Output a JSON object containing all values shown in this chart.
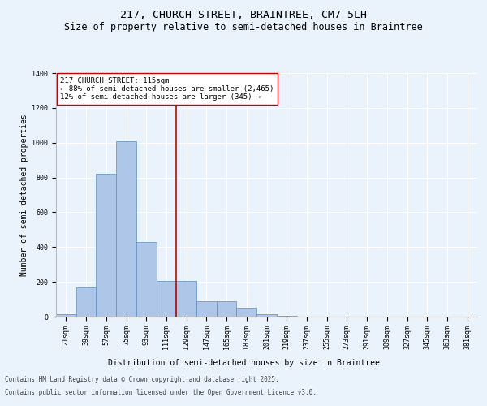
{
  "title_line1": "217, CHURCH STREET, BRAINTREE, CM7 5LH",
  "title_line2": "Size of property relative to semi-detached houses in Braintree",
  "xlabel": "Distribution of semi-detached houses by size in Braintree",
  "ylabel": "Number of semi-detached properties",
  "annotation_title": "217 CHURCH STREET: 115sqm",
  "annotation_line1": "← 88% of semi-detached houses are smaller (2,465)",
  "annotation_line2": "12% of semi-detached houses are larger (345) →",
  "footer_line1": "Contains HM Land Registry data © Crown copyright and database right 2025.",
  "footer_line2": "Contains public sector information licensed under the Open Government Licence v3.0.",
  "categories": [
    "21sqm",
    "39sqm",
    "57sqm",
    "75sqm",
    "93sqm",
    "111sqm",
    "129sqm",
    "147sqm",
    "165sqm",
    "183sqm",
    "201sqm",
    "219sqm",
    "237sqm",
    "255sqm",
    "273sqm",
    "291sqm",
    "309sqm",
    "327sqm",
    "345sqm",
    "363sqm",
    "381sqm"
  ],
  "bar_values": [
    15,
    170,
    820,
    1010,
    430,
    205,
    205,
    90,
    90,
    50,
    15,
    5,
    0,
    0,
    0,
    0,
    0,
    0,
    0,
    0,
    0
  ],
  "bar_color": "#aec6e8",
  "bar_edge_color": "#5a8fc0",
  "vline_x": 5.5,
  "vline_color": "#cc0000",
  "ylim": [
    0,
    1400
  ],
  "yticks": [
    0,
    200,
    400,
    600,
    800,
    1000,
    1200,
    1400
  ],
  "bg_color": "#eaf2fc",
  "plot_bg_color": "#eaf2fc",
  "grid_color": "#ffffff",
  "annotation_box_color": "#ffffff",
  "annotation_box_edge": "#cc0000",
  "title_fontsize": 9.5,
  "subtitle_fontsize": 8.5,
  "axis_label_fontsize": 7,
  "tick_fontsize": 6,
  "annotation_fontsize": 6.5,
  "footer_fontsize": 5.5
}
